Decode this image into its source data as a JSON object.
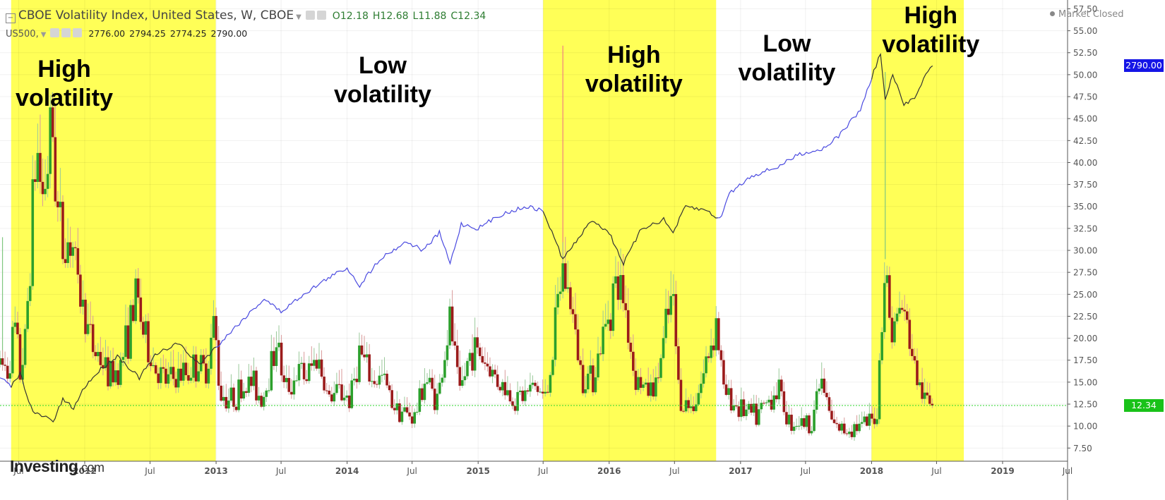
{
  "header": {
    "title": "CBOE Volatility Index, United States, W, CBOE",
    "ohlc": {
      "open": "O12.18",
      "high": "H12.68",
      "low": "L11.88",
      "close": "C12.34"
    },
    "compare": {
      "symbol": "US500,",
      "values": [
        "2776.00",
        "2794.25",
        "2774.25",
        "2790.00"
      ]
    }
  },
  "status": "Market Closed",
  "logo": {
    "brand": "Investing",
    "suffix": ".com"
  },
  "annotations": [
    {
      "text": "High\nvolatility",
      "x": "2011-11-05"
    },
    {
      "text": "Low\nvolatility",
      "x": "2014-04-10"
    },
    {
      "text": "High\nvolatility",
      "x": "2016-03-10"
    },
    {
      "text": "Low\nvolatility",
      "x": "2017-05-10"
    },
    {
      "text": "High\nvolatility",
      "x": "2018-06-15"
    }
  ],
  "price_tags": [
    {
      "value": "2790.00",
      "color": "#1515e6",
      "y_value": 51.0
    },
    {
      "value": "12.34",
      "color": "#19c219",
      "y_value": 12.34
    }
  ],
  "colors": {
    "band": "#ffff57",
    "up": "#2ca02c",
    "down": "#9b1b1b",
    "spx_line_blue": "#4a4ae0",
    "spx_line_dark": "#333333",
    "current_line": "#2bd62b"
  },
  "chart_data": {
    "type": "candlestick",
    "title": "CBOE Volatility Index, United States, W, CBOE",
    "ylim": [
      6.0,
      58.5
    ],
    "yticks": [
      "7.50",
      "10.00",
      "12.50",
      "15.00",
      "17.50",
      "20.00",
      "22.50",
      "25.00",
      "27.50",
      "30.00",
      "32.50",
      "35.00",
      "37.50",
      "40.00",
      "42.50",
      "45.00",
      "47.50",
      "50.00",
      "52.50",
      "55.00",
      "57.50"
    ],
    "xlim": [
      "2011-05-10",
      "2019-07-01"
    ],
    "xticks": [
      {
        "label": "Jul",
        "date": "2011-07-01"
      },
      {
        "label": "2012",
        "date": "2012-01-01"
      },
      {
        "label": "Jul",
        "date": "2012-07-01"
      },
      {
        "label": "2013",
        "date": "2013-01-01"
      },
      {
        "label": "Jul",
        "date": "2013-07-01"
      },
      {
        "label": "2014",
        "date": "2014-01-01"
      },
      {
        "label": "Jul",
        "date": "2014-07-01"
      },
      {
        "label": "2015",
        "date": "2015-01-01"
      },
      {
        "label": "Jul",
        "date": "2015-07-01"
      },
      {
        "label": "2016",
        "date": "2016-01-01"
      },
      {
        "label": "Jul",
        "date": "2016-07-01"
      },
      {
        "label": "2017",
        "date": "2017-01-01"
      },
      {
        "label": "Jul",
        "date": "2017-07-01"
      },
      {
        "label": "2018",
        "date": "2018-01-01"
      },
      {
        "label": "Jul",
        "date": "2018-07-01"
      },
      {
        "label": "2019",
        "date": "2019-01-01"
      },
      {
        "label": "Jul",
        "date": "2019-07-01"
      }
    ],
    "regimes": [
      {
        "label": "High volatility",
        "start": "2011-06-10",
        "end": "2012-12-31"
      },
      {
        "label": "High volatility",
        "start": "2015-07-01",
        "end": "2016-10-25"
      },
      {
        "label": "High volatility",
        "start": "2018-01-01",
        "end": "2018-09-15"
      }
    ],
    "current_value": 12.34,
    "vix_series": [
      [
        "2011-05-10",
        17.0
      ],
      [
        "2011-06-01",
        16.5
      ],
      [
        "2011-06-20",
        21.0
      ],
      [
        "2011-07-05",
        16.0
      ],
      [
        "2011-07-20",
        19.5
      ],
      [
        "2011-08-05",
        32.0
      ],
      [
        "2011-08-20",
        42.0
      ],
      [
        "2011-09-05",
        36.0
      ],
      [
        "2011-09-20",
        40.0
      ],
      [
        "2011-10-03",
        44.0
      ],
      [
        "2011-10-20",
        33.0
      ],
      [
        "2011-11-05",
        30.0
      ],
      [
        "2011-11-25",
        32.0
      ],
      [
        "2011-12-10",
        26.0
      ],
      [
        "2012-01-01",
        23.0
      ],
      [
        "2012-01-20",
        19.0
      ],
      [
        "2012-02-10",
        18.0
      ],
      [
        "2012-03-10",
        15.5
      ],
      [
        "2012-04-10",
        17.0
      ],
      [
        "2012-05-10",
        22.0
      ],
      [
        "2012-05-25",
        25.0
      ],
      [
        "2012-06-15",
        20.0
      ],
      [
        "2012-07-10",
        17.0
      ],
      [
        "2012-08-10",
        15.0
      ],
      [
        "2012-09-10",
        15.5
      ],
      [
        "2012-10-10",
        16.0
      ],
      [
        "2012-11-10",
        17.0
      ],
      [
        "2012-12-01",
        16.0
      ],
      [
        "2012-12-28",
        22.0
      ],
      [
        "2013-01-10",
        14.0
      ],
      [
        "2013-02-10",
        13.0
      ],
      [
        "2013-03-10",
        14.0
      ],
      [
        "2013-04-10",
        15.0
      ],
      [
        "2013-05-10",
        13.0
      ],
      [
        "2013-06-20",
        20.0
      ],
      [
        "2013-07-10",
        14.0
      ],
      [
        "2013-08-20",
        16.0
      ],
      [
        "2013-09-10",
        15.5
      ],
      [
        "2013-10-10",
        18.0
      ],
      [
        "2013-11-10",
        13.0
      ],
      [
        "2013-12-10",
        14.0
      ],
      [
        "2014-01-10",
        13.0
      ],
      [
        "2014-02-05",
        18.5
      ],
      [
        "2014-03-10",
        15.0
      ],
      [
        "2014-04-10",
        15.5
      ],
      [
        "2014-05-10",
        12.5
      ],
      [
        "2014-06-10",
        11.5
      ],
      [
        "2014-07-10",
        11.0
      ],
      [
        "2014-08-05",
        15.5
      ],
      [
        "2014-09-10",
        13.0
      ],
      [
        "2014-10-15",
        22.0
      ],
      [
        "2014-11-10",
        13.5
      ],
      [
        "2014-12-15",
        19.0
      ],
      [
        "2015-01-10",
        18.0
      ],
      [
        "2015-02-10",
        16.0
      ],
      [
        "2015-03-10",
        14.5
      ],
      [
        "2015-04-10",
        13.0
      ],
      [
        "2015-05-10",
        13.5
      ],
      [
        "2015-06-10",
        14.5
      ],
      [
        "2015-07-10",
        13.0
      ],
      [
        "2015-08-25",
        28.0
      ],
      [
        "2015-09-15",
        24.0
      ],
      [
        "2015-10-15",
        16.0
      ],
      [
        "2015-11-15",
        15.5
      ],
      [
        "2015-12-15",
        20.0
      ],
      [
        "2016-01-15",
        26.0
      ],
      [
        "2016-02-10",
        25.0
      ],
      [
        "2016-03-10",
        16.0
      ],
      [
        "2016-04-10",
        14.0
      ],
      [
        "2016-05-10",
        14.5
      ],
      [
        "2016-06-25",
        25.0
      ],
      [
        "2016-07-15",
        13.0
      ],
      [
        "2016-08-15",
        12.0
      ],
      [
        "2016-09-15",
        15.0
      ],
      [
        "2016-10-25",
        22.0
      ],
      [
        "2016-11-15",
        14.0
      ],
      [
        "2016-12-15",
        12.5
      ],
      [
        "2017-01-15",
        11.5
      ],
      [
        "2017-02-15",
        11.0
      ],
      [
        "2017-03-15",
        12.5
      ],
      [
        "2017-04-15",
        14.5
      ],
      [
        "2017-05-15",
        10.5
      ],
      [
        "2017-06-15",
        10.5
      ],
      [
        "2017-07-15",
        10.0
      ],
      [
        "2017-08-12",
        15.5
      ],
      [
        "2017-09-15",
        10.0
      ],
      [
        "2017-10-15",
        9.5
      ],
      [
        "2017-11-15",
        10.0
      ],
      [
        "2017-12-15",
        10.0
      ],
      [
        "2018-01-15",
        11.0
      ],
      [
        "2018-02-08",
        29.0
      ],
      [
        "2018-02-25",
        20.0
      ],
      [
        "2018-03-25",
        24.0
      ],
      [
        "2018-04-15",
        20.0
      ],
      [
        "2018-05-15",
        14.0
      ],
      [
        "2018-06-01",
        13.0
      ],
      [
        "2018-06-20",
        12.34
      ]
    ],
    "spx_series": [
      [
        "2011-05-10",
        15.5
      ],
      [
        "2011-06-10",
        14.5
      ],
      [
        "2011-07-05",
        16.0
      ],
      [
        "2011-08-10",
        11.5
      ],
      [
        "2011-09-15",
        11.0
      ],
      [
        "2011-10-05",
        10.5
      ],
      [
        "2011-11-01",
        13.0
      ],
      [
        "2011-12-01",
        12.0
      ],
      [
        "2012-01-01",
        14.5
      ],
      [
        "2012-02-15",
        16.5
      ],
      [
        "2012-04-01",
        18.0
      ],
      [
        "2012-06-01",
        15.5
      ],
      [
        "2012-07-15",
        18.0
      ],
      [
        "2012-09-15",
        19.5
      ],
      [
        "2012-11-15",
        17.0
      ],
      [
        "2013-01-01",
        19.0
      ],
      [
        "2013-03-01",
        21.5
      ],
      [
        "2013-05-15",
        24.5
      ],
      [
        "2013-07-01",
        23.0
      ],
      [
        "2013-09-01",
        25.0
      ],
      [
        "2013-11-15",
        27.0
      ],
      [
        "2014-01-01",
        28.0
      ],
      [
        "2014-02-05",
        26.0
      ],
      [
        "2014-04-01",
        29.0
      ],
      [
        "2014-06-15",
        31.0
      ],
      [
        "2014-08-01",
        30.0
      ],
      [
        "2014-09-15",
        32.0
      ],
      [
        "2014-10-15",
        28.5
      ],
      [
        "2014-11-15",
        33.0
      ],
      [
        "2015-01-01",
        32.5
      ],
      [
        "2015-03-01",
        34.0
      ],
      [
        "2015-05-15",
        35.0
      ],
      [
        "2015-07-01",
        34.5
      ],
      [
        "2015-08-25",
        29.0
      ],
      [
        "2015-10-01",
        31.0
      ],
      [
        "2015-11-15",
        33.5
      ],
      [
        "2016-01-01",
        32.0
      ],
      [
        "2016-02-10",
        28.5
      ],
      [
        "2016-04-01",
        32.5
      ],
      [
        "2016-06-01",
        33.5
      ],
      [
        "2016-06-27",
        32.0
      ],
      [
        "2016-08-01",
        35.0
      ],
      [
        "2016-10-01",
        34.5
      ],
      [
        "2016-11-04",
        33.5
      ],
      [
        "2016-12-01",
        36.5
      ],
      [
        "2017-02-01",
        38.5
      ],
      [
        "2017-04-15",
        39.5
      ],
      [
        "2017-06-15",
        41.0
      ],
      [
        "2017-08-15",
        41.5
      ],
      [
        "2017-10-01",
        43.0
      ],
      [
        "2017-12-01",
        46.0
      ],
      [
        "2018-01-26",
        52.5
      ],
      [
        "2018-02-08",
        47.0
      ],
      [
        "2018-03-01",
        50.0
      ],
      [
        "2018-04-01",
        46.5
      ],
      [
        "2018-05-01",
        47.5
      ],
      [
        "2018-06-01",
        50.0
      ],
      [
        "2018-06-20",
        51.0
      ]
    ],
    "spikes": [
      {
        "date": "2015-08-25",
        "high": 53.3
      },
      {
        "date": "2018-02-08",
        "high": 50.3
      },
      {
        "date": "2011-10-03",
        "high": 48.0
      },
      {
        "date": "2011-05-17",
        "high": 31.5
      }
    ]
  }
}
